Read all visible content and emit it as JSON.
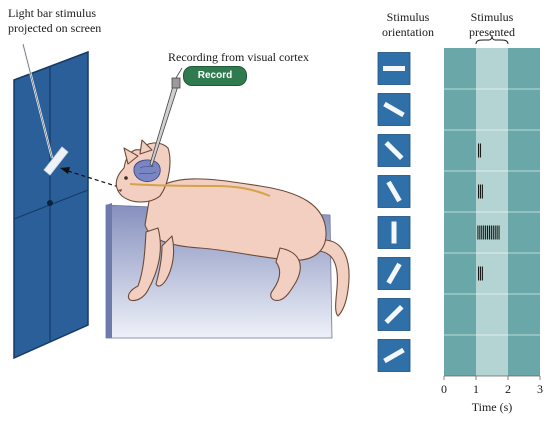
{
  "labels": {
    "stimulus_note_line1": "Light bar stimulus",
    "stimulus_note_line2": "projected on screen",
    "recording_title": "Recording from visual cortex",
    "record_button": "Record",
    "orientation_header_line1": "Stimulus",
    "orientation_header_line2": "orientation",
    "presented_header_line1": "Stimulus",
    "presented_header_line2": "presented",
    "time_axis_label": "Time (s)"
  },
  "time_ticks": [
    "0",
    "1",
    "2",
    "3"
  ],
  "stimulus_window_s": [
    1,
    2
  ],
  "orientations_deg": [
    0,
    30,
    45,
    60,
    90,
    120,
    135,
    150
  ],
  "spike_times_s": [
    [],
    [],
    [
      1.08,
      1.14
    ],
    [
      1.08,
      1.14,
      1.2
    ],
    [
      1.06,
      1.12,
      1.18,
      1.24,
      1.3,
      1.36,
      1.42,
      1.48,
      1.54,
      1.6,
      1.66,
      1.72
    ],
    [
      1.08,
      1.14,
      1.2
    ],
    [],
    []
  ],
  "colors": {
    "screen": "#2a5f99",
    "tile": "#3070a8",
    "raster_bg": "#6aa7a8",
    "raster_window": "#b3d4d3",
    "cat": "#f2cfc0",
    "platform_top": "#8690bd",
    "platform_bottom": "#e8ecf7",
    "record": "#2f7a4f"
  }
}
